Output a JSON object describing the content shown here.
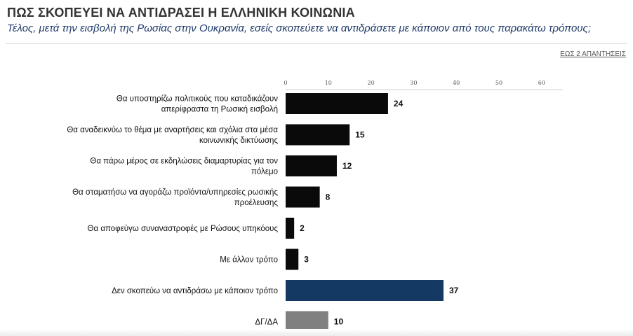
{
  "header": {
    "title": "ΠΩΣ ΣΚΟΠΕΥΕΙ ΝΑ ΑΝΤΙΔΡΑΣΕΙ Η ΕΛΛΗΝΙΚΗ ΚΟΙΝΩΝΙΑ",
    "subtitle": "Τέλος, μετά την εισβολή της Ρωσίας στην Ουκρανία, εσείς σκοπεύετε να αντιδράσετε με κάποιον από τους παρακάτω τρόπους;",
    "note": "ΕΩΣ 2 ΑΠΑΝΤΗΣΕΙΣ"
  },
  "chart_data": {
    "type": "bar",
    "orientation": "horizontal",
    "categories": [
      [
        "Θα υποστηρίζω πολιτικούς που καταδικάζουν",
        "απερίφραστα τη Ρωσική εισβολή"
      ],
      [
        "Θα αναδεικνύω το θέμα με αναρτήσεις και σχόλια στα μέσα",
        "κοινωνικής δικτύωσης"
      ],
      [
        "Θα πάρω μέρος σε εκδηλώσεις διαμαρτυρίας για τον",
        "πόλεμο"
      ],
      [
        "Θα σταματήσω να αγοράζω προϊόντα/υπηρεσίες ρωσικής",
        "προέλευσης"
      ],
      [
        "Θα αποφεύγω συναναστροφές με Ρώσους υπηκόους"
      ],
      [
        "Με άλλον τρόπο"
      ],
      [
        "Δεν σκοπεύω να αντιδράσω με κάποιον τρόπο"
      ],
      [
        "ΔΓ/ΔΑ"
      ]
    ],
    "values": [
      24,
      15,
      12,
      8,
      2,
      3,
      37,
      10
    ],
    "colors": [
      "#0a0a0a",
      "#0a0a0a",
      "#0a0a0a",
      "#0a0a0a",
      "#0a0a0a",
      "#0a0a0a",
      "#143a63",
      "#808080"
    ],
    "xticks": [
      "0",
      "10",
      "20",
      "30",
      "40",
      "50",
      "60"
    ],
    "xlim": [
      0,
      60
    ],
    "grid": false,
    "legend": "none"
  }
}
